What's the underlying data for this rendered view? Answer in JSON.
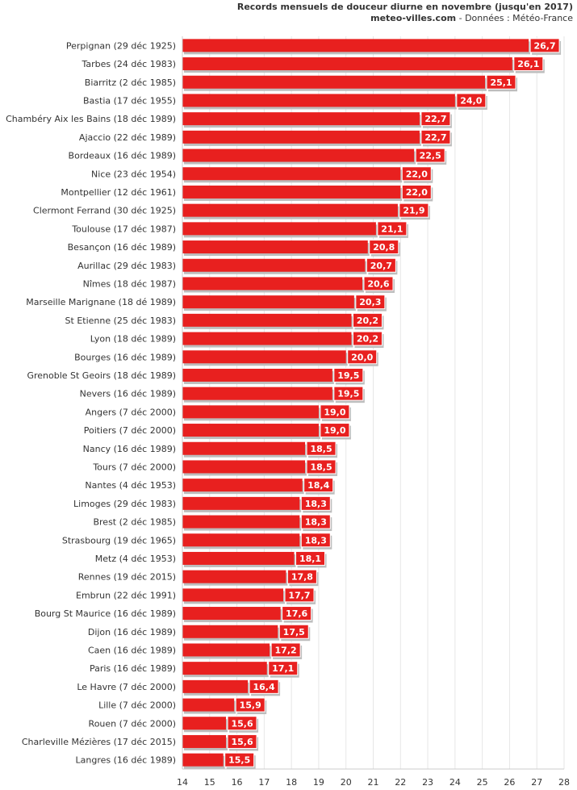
{
  "header": {
    "title": "Records mensuels de douceur diurne en novembre (jusqu'en 2017)",
    "site": "meteo-villes.com",
    "source": " - Données : Météo-France"
  },
  "colors": {
    "bar": "#e8201f",
    "bar_shadow": "#bdbdbd",
    "grid": "#e6e6e6",
    "label_box_border": "#ffffff",
    "text": "#333333"
  },
  "chart_data": {
    "type": "bar",
    "orientation": "horizontal",
    "title": "Records mensuels de douceur diurne en novembre (jusqu'en 2017)",
    "subtitle": "meteo-villes.com - Données : Météo-France",
    "xlabel": "",
    "ylabel": "",
    "xlim": [
      14,
      28
    ],
    "xticks": [
      14,
      15,
      16,
      17,
      18,
      19,
      20,
      21,
      22,
      23,
      24,
      25,
      26,
      27,
      28
    ],
    "grid": true,
    "categories": [
      "Perpignan (29 déc 1925)",
      "Tarbes (24 déc 1983)",
      "Biarritz (2 déc 1985)",
      "Bastia (17 déc 1955)",
      "Chambéry Aix les Bains (18 déc 1989)",
      "Ajaccio (22 déc 1989)",
      "Bordeaux (16 déc 1989)",
      "Nice (23 déc 1954)",
      "Montpellier (12 déc 1961)",
      "Clermont Ferrand (30 déc 1925)",
      "Toulouse (17 déc 1987)",
      "Besançon (16 déc 1989)",
      "Aurillac (29 déc 1983)",
      "Nîmes (18 déc 1987)",
      "Marseille Marignane (18 dé 1989)",
      "St Etienne (25 déc 1983)",
      "Lyon (18 déc 1989)",
      "Bourges (16 déc 1989)",
      "Grenoble St Geoirs (18 déc 1989)",
      "Nevers (16 déc 1989)",
      "Angers (7 déc 2000)",
      "Poitiers (7 déc 2000)",
      "Nancy (16 déc 1989)",
      "Tours (7 déc 2000)",
      "Nantes (4 déc 1953)",
      "Limoges (29 déc 1983)",
      "Brest (2 déc 1985)",
      "Strasbourg (19 déc 1965)",
      "Metz (4 déc 1953)",
      "Rennes (19 déc 2015)",
      "Embrun (22 déc 1991)",
      "Bourg St Maurice (16 déc 1989)",
      "Dijon (16 déc 1989)",
      "Caen (16 déc 1989)",
      "Paris (16 déc 1989)",
      "Le Havre (7 déc 2000)",
      "Lille (7 déc 2000)",
      "Rouen (7 déc 2000)",
      "Charleville Mézières (17 déc 2015)",
      "Langres (16 déc 1989)"
    ],
    "values": [
      26.7,
      26.1,
      25.1,
      24.0,
      22.7,
      22.7,
      22.5,
      22.0,
      22.0,
      21.9,
      21.1,
      20.8,
      20.7,
      20.6,
      20.3,
      20.2,
      20.2,
      20.0,
      19.5,
      19.5,
      19.0,
      19.0,
      18.5,
      18.5,
      18.4,
      18.3,
      18.3,
      18.3,
      18.1,
      17.8,
      17.7,
      17.6,
      17.5,
      17.2,
      17.1,
      16.4,
      15.9,
      15.6,
      15.6,
      15.5
    ],
    "value_labels": [
      "26,7",
      "26,1",
      "25,1",
      "24,0",
      "22,7",
      "22,7",
      "22,5",
      "22,0",
      "22,0",
      "21,9",
      "21,1",
      "20,8",
      "20,7",
      "20,6",
      "20,3",
      "20,2",
      "20,2",
      "20,0",
      "19,5",
      "19,5",
      "19,0",
      "19,0",
      "18,5",
      "18,5",
      "18,4",
      "18,3",
      "18,3",
      "18,3",
      "18,1",
      "17,8",
      "17,7",
      "17,6",
      "17,5",
      "17,2",
      "17,1",
      "16,4",
      "15,9",
      "15,6",
      "15,6",
      "15,5"
    ]
  }
}
